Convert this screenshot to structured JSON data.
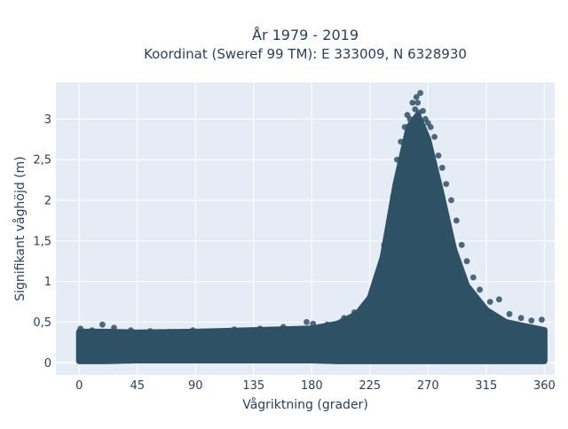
{
  "chart_data": {
    "type": "scatter",
    "title": "År 1979 - 2019",
    "subtitle": "Koordinat (Sweref 99 TM): E 333009, N 6328930",
    "xlabel": "Vågriktning (grader)",
    "ylabel": "Signifikant våghöjd (m)",
    "xlim": [
      -18,
      368
    ],
    "ylim": [
      -0.15,
      3.45
    ],
    "xticks": [
      0,
      45,
      90,
      135,
      180,
      225,
      270,
      315,
      360
    ],
    "xtick_labels": [
      "0",
      "45",
      "90",
      "135",
      "180",
      "225",
      "270",
      "315",
      "360"
    ],
    "yticks": [
      0,
      0.5,
      1,
      1.5,
      2,
      2.5,
      3
    ],
    "ytick_labels": [
      "0",
      "0,5",
      "1",
      "1,5",
      "2",
      "2,5",
      "3"
    ],
    "grid": true,
    "legend": "none",
    "series": [
      {
        "color": "#2e5166",
        "envelope": {
          "x": [
            0,
            20,
            45,
            90,
            135,
            180,
            200,
            215,
            225,
            235,
            245,
            255,
            262,
            270,
            280,
            290,
            300,
            315,
            330,
            345,
            360
          ],
          "y_low": [
            0.02,
            0.02,
            0.03,
            0.03,
            0.03,
            0.03,
            0.02,
            0.02,
            0.02,
            0.02,
            0.02,
            0.02,
            0.02,
            0.02,
            0.02,
            0.02,
            0.02,
            0.02,
            0.02,
            0.02,
            0.02
          ],
          "y_high": [
            0.38,
            0.38,
            0.37,
            0.38,
            0.4,
            0.42,
            0.48,
            0.6,
            0.8,
            1.3,
            2.2,
            2.9,
            3.05,
            2.75,
            2.1,
            1.4,
            0.95,
            0.65,
            0.5,
            0.45,
            0.4
          ]
        },
        "x": [
          1,
          5,
          10,
          18,
          27,
          40,
          55,
          70,
          88,
          104,
          120,
          140,
          158,
          176,
          181,
          192,
          205,
          213,
          220,
          228,
          232,
          236,
          240,
          243,
          246,
          249,
          252,
          254,
          256,
          258,
          260,
          261,
          262,
          263,
          264,
          266,
          268,
          270,
          272,
          275,
          278,
          281,
          284,
          288,
          292,
          296,
          300,
          305,
          310,
          318,
          325,
          333,
          342,
          350,
          358
        ],
        "y": [
          0.42,
          0.38,
          0.4,
          0.47,
          0.43,
          0.4,
          0.39,
          0.38,
          0.4,
          0.38,
          0.41,
          0.42,
          0.44,
          0.5,
          0.48,
          0.47,
          0.55,
          0.62,
          0.68,
          0.82,
          1.1,
          1.45,
          1.75,
          2.05,
          2.5,
          2.72,
          2.9,
          3.05,
          3.0,
          3.2,
          3.12,
          3.27,
          3.2,
          3.08,
          3.32,
          3.1,
          3.0,
          2.95,
          2.9,
          2.78,
          2.55,
          2.4,
          2.2,
          2.0,
          1.75,
          1.45,
          1.25,
          1.05,
          0.9,
          0.75,
          0.78,
          0.6,
          0.55,
          0.52,
          0.53
        ]
      }
    ]
  }
}
